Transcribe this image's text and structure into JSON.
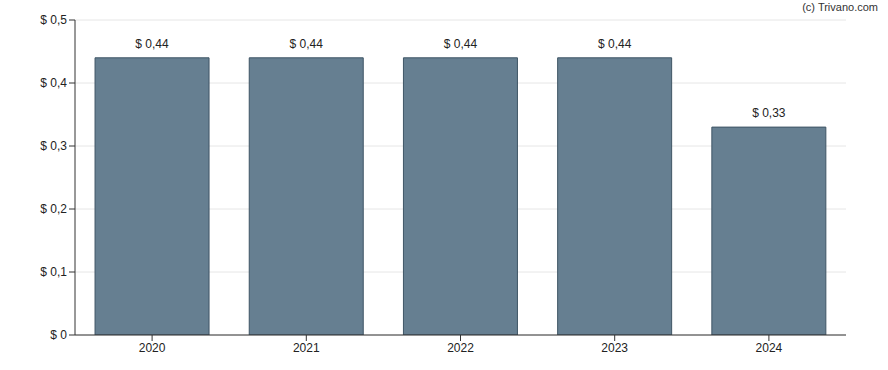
{
  "chart_data": {
    "type": "bar",
    "annotations": [
      "(c) Trivano.com"
    ],
    "categories": [
      "2020",
      "2021",
      "2022",
      "2023",
      "2024"
    ],
    "values": [
      0.44,
      0.44,
      0.44,
      0.44,
      0.33
    ],
    "value_labels": [
      "$ 0,44",
      "$ 0,44",
      "$ 0,44",
      "$ 0,44",
      "$ 0,33"
    ],
    "data_labels": true,
    "color": "#667f91",
    "ylim": [
      0,
      0.5
    ],
    "yticks": [
      {
        "value": 0,
        "label": "$ 0"
      },
      {
        "value": 0.1,
        "label": "$ 0,1"
      },
      {
        "value": 0.2,
        "label": "$ 0,2"
      },
      {
        "value": 0.3,
        "label": "$ 0,3"
      },
      {
        "value": 0.4,
        "label": "$ 0,4"
      },
      {
        "value": 0.5,
        "label": "$ 0,5"
      }
    ],
    "grid": true
  }
}
